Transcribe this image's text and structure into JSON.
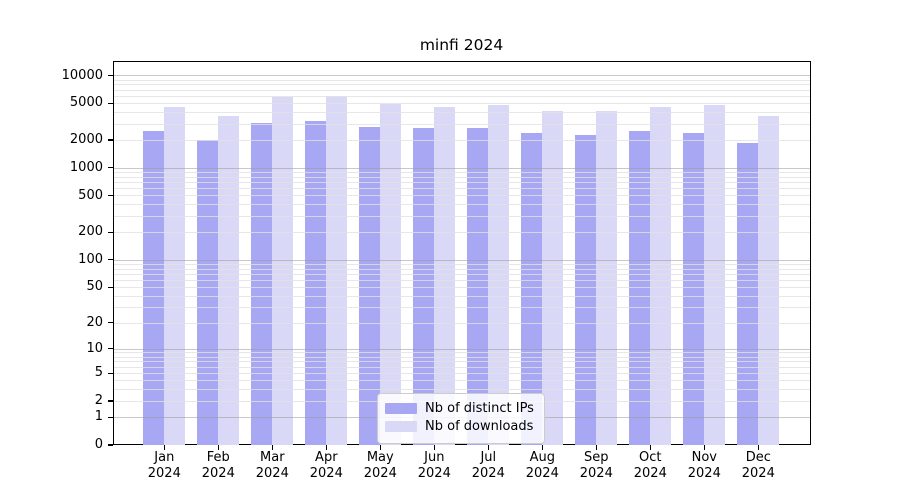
{
  "chart_data": {
    "type": "bar",
    "title": "minfi 2024",
    "xlabel": "",
    "ylabel": "",
    "yscale": "log1p",
    "ylim": [
      0,
      14900
    ],
    "grid": true,
    "legend_position": "lower center",
    "x_tick_labels": [
      "Jan 2024",
      "Feb 2024",
      "Mar 2024",
      "Apr 2024",
      "May 2024",
      "Jun 2024",
      "Jul 2024",
      "Aug 2024",
      "Sep 2024",
      "Oct 2024",
      "Nov 2024",
      "Dec 2024"
    ],
    "y_tick_labels": [
      "10000",
      "5000",
      "2000",
      "1000",
      "500",
      "200",
      "100",
      "50",
      "20",
      "10",
      "5",
      "2",
      "1",
      "0"
    ],
    "categories": [
      "Jan",
      "Feb",
      "Mar",
      "Apr",
      "May",
      "Jun",
      "Jul",
      "Aug",
      "Sep",
      "Oct",
      "Nov",
      "Dec"
    ],
    "series": [
      {
        "name": "Nb of distinct IPs",
        "color": "#a7a7f3",
        "values": [
          2500,
          2000,
          3050,
          3220,
          2740,
          2670,
          2700,
          2400,
          2280,
          2500,
          2370,
          1850
        ]
      },
      {
        "name": "Nb of downloads",
        "color": "#d9d9f7",
        "values": [
          4500,
          3600,
          5750,
          5900,
          4880,
          4530,
          4730,
          4060,
          4060,
          4570,
          4780,
          3600
        ]
      }
    ],
    "colors": {
      "background": "#ffffff",
      "spine": "#000000",
      "major_grid": "#c8c8c8",
      "minor_grid": "#e8e8e8"
    }
  }
}
